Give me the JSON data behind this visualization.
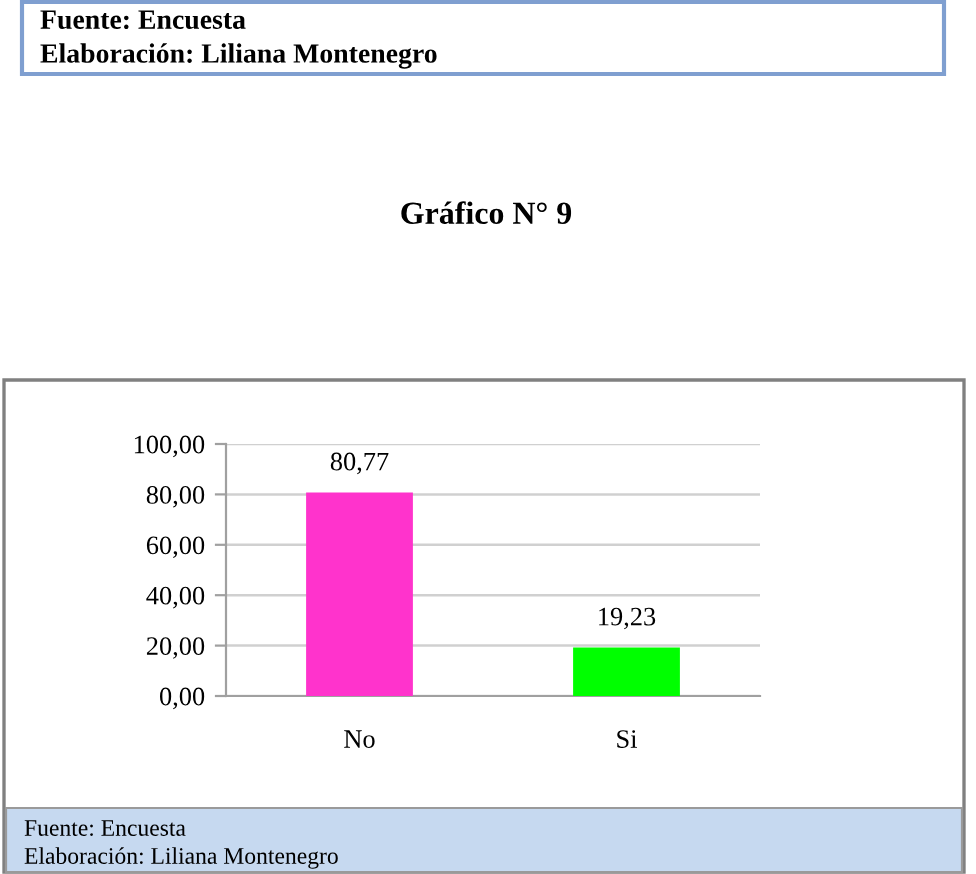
{
  "chart_data": {
    "type": "bar",
    "title": "Gráfico N° 9",
    "categories": [
      "No",
      "Si"
    ],
    "values": [
      80.77,
      19.23
    ],
    "colors": [
      "#ff33cc",
      "#00ff00"
    ],
    "value_labels": [
      "80,77",
      "19,23"
    ],
    "ylim": [
      0,
      100
    ],
    "yticks": [
      {
        "value": 0,
        "label": "0,00"
      },
      {
        "value": 20,
        "label": "20,00"
      },
      {
        "value": 40,
        "label": "40,00"
      },
      {
        "value": 60,
        "label": "60,00"
      },
      {
        "value": 80,
        "label": "80,00"
      },
      {
        "value": 100,
        "label": "100,00"
      }
    ],
    "grid": "y",
    "annotations": [
      "Fuente: Encuesta",
      "Elaboración: Liliana Montenegro",
      "Fuente: Encuesta",
      "Elaboración: Liliana Montenegro"
    ]
  }
}
